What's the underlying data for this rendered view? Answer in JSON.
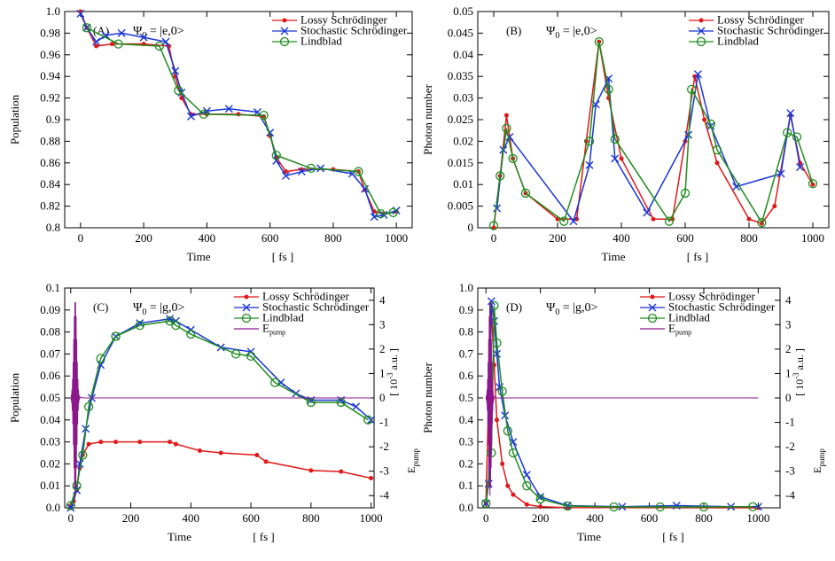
{
  "chart_data": [
    {
      "type": "line",
      "panel_label": "(A)",
      "annotation": [
        "Ψ",
        "0",
        " = |e,0>"
      ],
      "xlabel": "Time",
      "xunit": "[ fs ]",
      "ylabel": "Population",
      "xlim": [
        -50,
        1050
      ],
      "xticks": [
        0,
        200,
        400,
        600,
        800,
        1000
      ],
      "ylim": [
        0.8,
        1
      ],
      "yticks": [
        0.8,
        0.82,
        0.84,
        0.86,
        0.88,
        0.9,
        0.92,
        0.94,
        0.96,
        0.98,
        {
          "value": 1,
          "label": "1.0"
        }
      ],
      "series": [
        {
          "name": "Lossy Schrödinger",
          "color": "#e01818",
          "marker": "dot",
          "x": [
            0,
            20,
            50,
            100,
            200,
            280,
            300,
            320,
            350,
            400,
            500,
            580,
            600,
            620,
            650,
            700,
            800,
            880,
            900,
            930,
            960,
            1000
          ],
          "values": [
            1.0,
            0.985,
            0.968,
            0.97,
            0.97,
            0.968,
            0.94,
            0.92,
            0.905,
            0.905,
            0.905,
            0.903,
            0.885,
            0.865,
            0.852,
            0.854,
            0.854,
            0.852,
            0.835,
            0.815,
            0.813,
            0.815
          ]
        },
        {
          "name": "Stochastic Schrödinger",
          "color": "#1a35d8",
          "marker": "x",
          "x": [
            0,
            20,
            50,
            80,
            130,
            200,
            270,
            300,
            320,
            350,
            400,
            470,
            560,
            600,
            620,
            650,
            700,
            760,
            860,
            900,
            930,
            960,
            1000
          ],
          "values": [
            0.998,
            0.985,
            0.972,
            0.978,
            0.98,
            0.976,
            0.972,
            0.945,
            0.925,
            0.903,
            0.908,
            0.91,
            0.907,
            0.888,
            0.862,
            0.848,
            0.852,
            0.855,
            0.85,
            0.836,
            0.81,
            0.812,
            0.816
          ]
        },
        {
          "name": "Lindblad",
          "color": "#1e8c1e",
          "marker": "ring",
          "x": [
            20,
            120,
            250,
            310,
            390,
            580,
            620,
            730,
            880,
            950,
            990
          ],
          "values": [
            0.985,
            0.97,
            0.968,
            0.927,
            0.905,
            0.904,
            0.867,
            0.855,
            0.852,
            0.813,
            0.814
          ]
        }
      ]
    },
    {
      "type": "line",
      "panel_label": "(B)",
      "annotation": [
        "Ψ",
        "0",
        " = |e,0>"
      ],
      "xlabel": "Time",
      "xunit": "[ fs ]",
      "ylabel": "Photon number",
      "xlim": [
        -50,
        1050
      ],
      "xticks": [
        0,
        200,
        400,
        600,
        800,
        1000
      ],
      "ylim": [
        0,
        0.05
      ],
      "yticks": [
        0,
        0.005,
        0.01,
        0.015,
        0.02,
        0.025,
        0.03,
        0.035,
        0.04,
        0.045,
        0.05
      ],
      "series": [
        {
          "name": "Lossy Schrödinger",
          "color": "#e01818",
          "marker": "dot",
          "x": [
            0,
            20,
            40,
            60,
            100,
            200,
            260,
            290,
            330,
            360,
            400,
            500,
            560,
            600,
            630,
            660,
            700,
            800,
            840,
            880,
            930,
            960,
            1000
          ],
          "values": [
            0,
            0.012,
            0.026,
            0.016,
            0.008,
            0.002,
            0.002,
            0.02,
            0.043,
            0.03,
            0.016,
            0.002,
            0.002,
            0.02,
            0.035,
            0.025,
            0.015,
            0.002,
            0.001,
            0.005,
            0.026,
            0.015,
            0.01
          ]
        },
        {
          "name": "Stochastic Schrödinger",
          "color": "#1a35d8",
          "marker": "x",
          "x": [
            10,
            30,
            50,
            250,
            300,
            320,
            360,
            380,
            480,
            610,
            640,
            680,
            760,
            900,
            930,
            960
          ],
          "values": [
            0.0045,
            0.018,
            0.021,
            0.0015,
            0.0145,
            0.0285,
            0.0345,
            0.016,
            0.0035,
            0.0215,
            0.0355,
            0.0235,
            0.0095,
            0.0125,
            0.0265,
            0.014
          ]
        },
        {
          "name": "Lindblad",
          "color": "#1e8c1e",
          "marker": "ring",
          "x": [
            0,
            20,
            40,
            60,
            100,
            220,
            300,
            330,
            360,
            380,
            550,
            600,
            620,
            680,
            700,
            840,
            920,
            950,
            1000
          ],
          "values": [
            0.0005,
            0.012,
            0.023,
            0.016,
            0.008,
            0.0015,
            0.02,
            0.043,
            0.032,
            0.0205,
            0.0015,
            0.008,
            0.032,
            0.024,
            0.018,
            0.0012,
            0.022,
            0.021,
            0.0102
          ]
        }
      ]
    },
    {
      "type": "line",
      "panel_label": "(C)",
      "annotation": [
        "Ψ",
        "0",
        " = |g,0>"
      ],
      "xlabel": "Time",
      "xunit": "[ fs ]",
      "ylabel": "Population",
      "y2label": [
        "E",
        "pump"
      ],
      "y2unit": [
        "[ 10",
        "-3",
        " a.u. ]"
      ],
      "xlim": [
        -20,
        1010
      ],
      "xticks": [
        0,
        200,
        400,
        600,
        800,
        1000
      ],
      "ylim": [
        0,
        0.1
      ],
      "yticks": [
        {
          "value": 0,
          "label": "0.0"
        },
        0.01,
        0.02,
        0.03,
        0.04,
        0.05,
        0.06,
        0.07,
        0.08,
        0.09,
        0.1
      ],
      "y2lim": [
        -4.5,
        4.5
      ],
      "y2ticks": [
        -4,
        -3,
        -2,
        -1,
        0,
        1,
        2,
        3,
        4
      ],
      "series": [
        {
          "name": "Lossy Schrödinger",
          "color": "#e01818",
          "marker": "dot",
          "x": [
            0,
            10,
            20,
            30,
            40,
            60,
            100,
            150,
            230,
            330,
            350,
            430,
            500,
            620,
            650,
            800,
            900,
            1000
          ],
          "values": [
            0.001,
            0.003,
            0.008,
            0.018,
            0.024,
            0.029,
            0.03,
            0.03,
            0.03,
            0.03,
            0.029,
            0.026,
            0.025,
            0.024,
            0.021,
            0.017,
            0.0165,
            0.0135
          ]
        },
        {
          "name": "Stochastic Schrödinger",
          "color": "#1a35d8",
          "marker": "x",
          "x": [
            0,
            20,
            30,
            50,
            70,
            100,
            150,
            230,
            330,
            350,
            400,
            500,
            600,
            700,
            750,
            800,
            900,
            950,
            1000
          ],
          "values": [
            0,
            0.008,
            0.02,
            0.036,
            0.05,
            0.065,
            0.078,
            0.084,
            0.086,
            0.085,
            0.081,
            0.073,
            0.071,
            0.057,
            0.052,
            0.049,
            0.049,
            0.046,
            0.04
          ]
        },
        {
          "name": "Lindblad",
          "color": "#1e8c1e",
          "marker": "ring",
          "x": [
            0,
            20,
            40,
            60,
            100,
            150,
            230,
            330,
            350,
            400,
            550,
            600,
            680,
            800,
            900,
            990
          ],
          "values": [
            0.001,
            0.01,
            0.024,
            0.046,
            0.068,
            0.078,
            0.083,
            0.085,
            0.083,
            0.079,
            0.07,
            0.069,
            0.057,
            0.048,
            0.048,
            0.04
          ]
        },
        {
          "name": "E",
          "name_sub": "pump",
          "color": "#8c168c",
          "marker": "none",
          "axis": "y2",
          "x": [
            0,
            1,
            2,
            3,
            4,
            5,
            6,
            7,
            8,
            9,
            10,
            11,
            12,
            13,
            14,
            15,
            16,
            17,
            18,
            19,
            20,
            21,
            22,
            23,
            24,
            25,
            26,
            27,
            28,
            29,
            30,
            40,
            1000
          ],
          "values": [
            0.04,
            -0.07,
            0.13,
            -0.21,
            0.34,
            -0.52,
            0.77,
            -1.08,
            1.47,
            -1.93,
            2.4,
            -2.88,
            3.34,
            -3.69,
            3.92,
            -4,
            3.92,
            -3.69,
            3.34,
            -2.88,
            2.4,
            -1.93,
            1.47,
            -1.08,
            0.77,
            -0.52,
            0.34,
            -0.21,
            0.13,
            -0.07,
            0.04,
            0,
            0
          ]
        }
      ]
    },
    {
      "type": "line",
      "panel_label": "(D)",
      "annotation": [
        "Ψ",
        "0",
        " = |g,0>"
      ],
      "xlabel": "Time",
      "xunit": "[ fs ]",
      "ylabel": "Photon number",
      "y2label": [
        "E",
        "pump"
      ],
      "y2unit": [
        "[ 10",
        "-3",
        " a.u. ]"
      ],
      "xlim": [
        -30,
        1080
      ],
      "xticks": [
        0,
        200,
        400,
        600,
        800,
        1000
      ],
      "ylim": [
        0,
        1
      ],
      "yticks": [
        {
          "value": 0,
          "label": "0.0"
        },
        0.1,
        0.2,
        0.3,
        0.4,
        0.5,
        0.6,
        0.7,
        0.8,
        0.9,
        {
          "value": 1,
          "label": "1.0"
        }
      ],
      "y2lim": [
        -4.5,
        4.5
      ],
      "y2ticks": [
        -4,
        -3,
        -2,
        -1,
        0,
        1,
        2,
        3,
        4
      ],
      "series": [
        {
          "name": "Lossy Schrödinger",
          "color": "#e01818",
          "marker": "dot",
          "x": [
            0,
            10,
            20,
            30,
            40,
            60,
            80,
            100,
            150,
            200,
            300,
            1000
          ],
          "values": [
            0.02,
            0.5,
            0.9,
            0.65,
            0.4,
            0.2,
            0.1,
            0.06,
            0.015,
            0.005,
            0.001,
            0
          ]
        },
        {
          "name": "Stochastic Schrödinger",
          "color": "#1a35d8",
          "marker": "x",
          "x": [
            0,
            10,
            20,
            30,
            40,
            50,
            70,
            100,
            150,
            200,
            300,
            500,
            700,
            900,
            1000
          ],
          "values": [
            0.02,
            0.11,
            0.94,
            0.85,
            0.7,
            0.55,
            0.42,
            0.3,
            0.15,
            0.05,
            0.01,
            0.005,
            0.01,
            0.005,
            0.005
          ]
        },
        {
          "name": "Lindblad",
          "color": "#1e8c1e",
          "marker": "ring",
          "x": [
            0,
            20,
            30,
            40,
            60,
            80,
            100,
            150,
            200,
            300,
            470,
            640,
            800,
            980
          ],
          "values": [
            0.02,
            0.25,
            0.92,
            0.75,
            0.53,
            0.35,
            0.25,
            0.1,
            0.04,
            0.008,
            0.004,
            0.004,
            0.004,
            0.005
          ]
        },
        {
          "name": "E",
          "name_sub": "pump",
          "color": "#8c168c",
          "marker": "none",
          "axis": "y2",
          "x": [
            0,
            1,
            2,
            3,
            4,
            5,
            6,
            7,
            8,
            9,
            10,
            11,
            12,
            13,
            14,
            15,
            16,
            17,
            18,
            19,
            20,
            21,
            22,
            23,
            24,
            25,
            26,
            27,
            28,
            29,
            30,
            40,
            1000
          ],
          "values": [
            0.04,
            -0.07,
            0.13,
            -0.21,
            0.34,
            -0.52,
            0.77,
            -1.08,
            1.47,
            -1.93,
            2.4,
            -2.88,
            3.34,
            -3.69,
            3.92,
            -4,
            3.92,
            -3.69,
            3.34,
            -2.88,
            2.4,
            -1.93,
            1.47,
            -1.08,
            0.77,
            -0.52,
            0.34,
            -0.21,
            0.13,
            -0.07,
            0.04,
            0,
            0
          ]
        }
      ]
    }
  ]
}
